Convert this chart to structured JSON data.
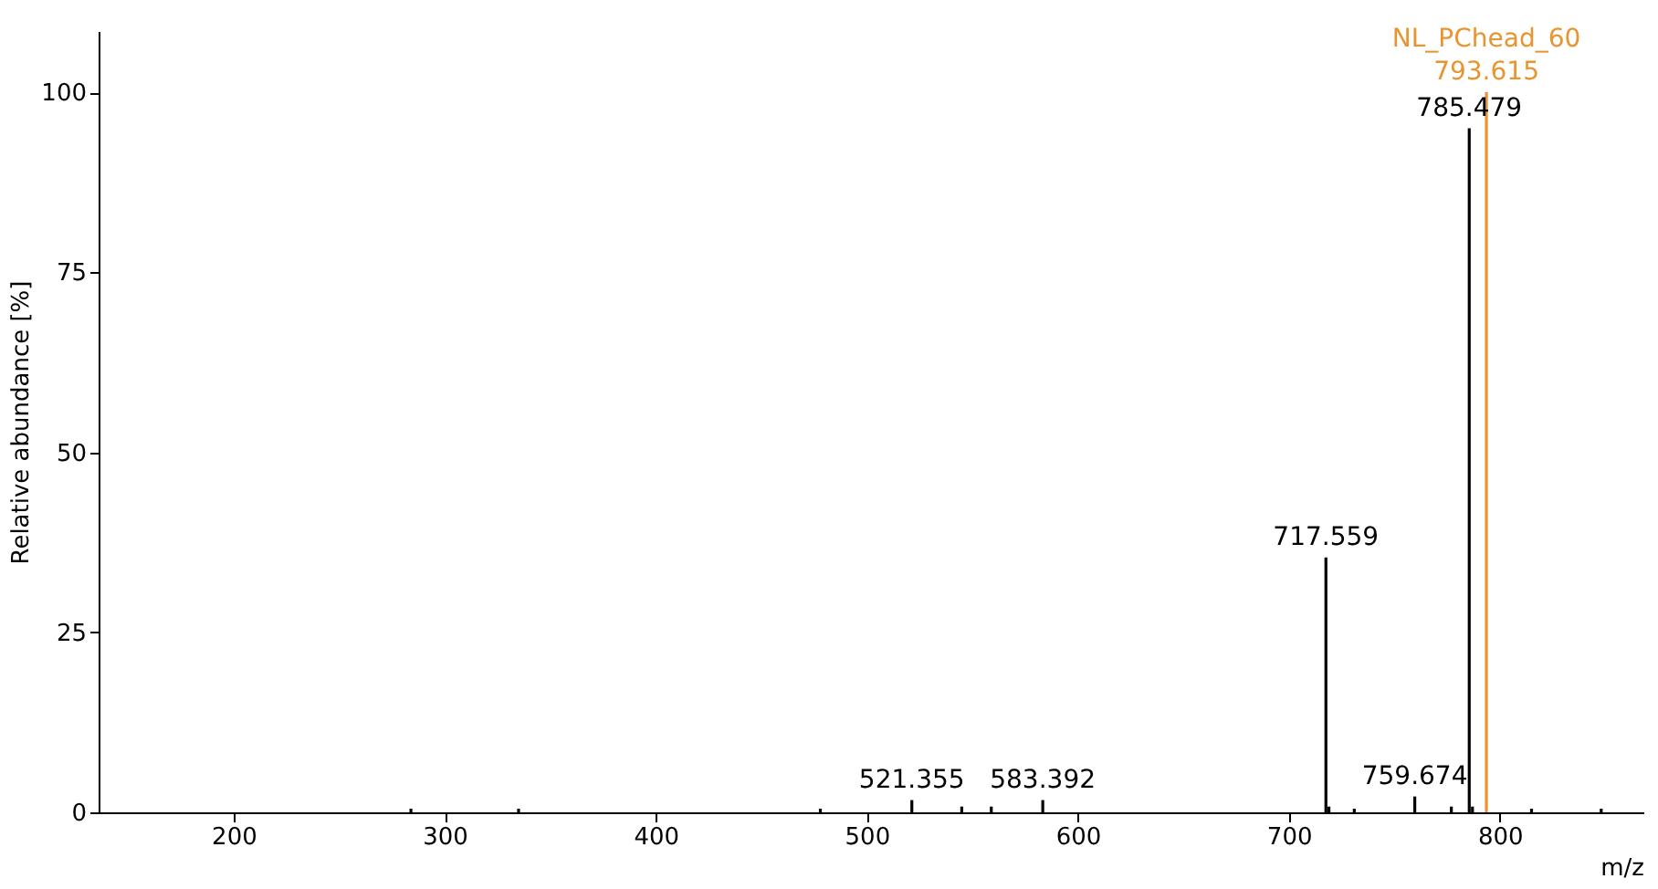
{
  "chart_data": {
    "type": "bar",
    "xlabel": "m/z",
    "ylabel": "Relative abundance [%]",
    "xlim": [
      136,
      868
    ],
    "xticks": [
      200,
      300,
      400,
      500,
      600,
      700,
      800
    ],
    "ylim": [
      0,
      108.5
    ],
    "yticks": [
      0,
      25,
      50,
      75,
      100
    ],
    "grid": false,
    "series": [
      {
        "color": "#000000",
        "x": [
          284,
          335,
          478,
          521.355,
          545,
          559,
          583.392,
          717.559,
          719,
          731,
          759.674,
          777,
          785.479,
          787,
          815,
          848
        ],
        "values": [
          0.5,
          0.5,
          0.5,
          1.7,
          0.8,
          0.8,
          1.7,
          35.4,
          0.8,
          0.5,
          2.2,
          0.8,
          95,
          0.8,
          0.5,
          0.5
        ]
      },
      {
        "name": "NL_PChead_60",
        "color": "#e8952f",
        "x": [
          793.615
        ],
        "values": [
          100
        ]
      }
    ],
    "annotations": [
      {
        "text": "521.355",
        "x": 521.355,
        "y": 1.7
      },
      {
        "text": "583.392",
        "x": 583.392,
        "y": 1.7
      },
      {
        "text": "717.559",
        "x": 717.559,
        "y": 35.4
      },
      {
        "text": "759.674",
        "x": 759.674,
        "y": 2.2
      },
      {
        "text": "785.479",
        "x": 785.479,
        "y": 95
      },
      {
        "text": "793.615",
        "x": 793.615,
        "y": 100
      }
    ]
  }
}
